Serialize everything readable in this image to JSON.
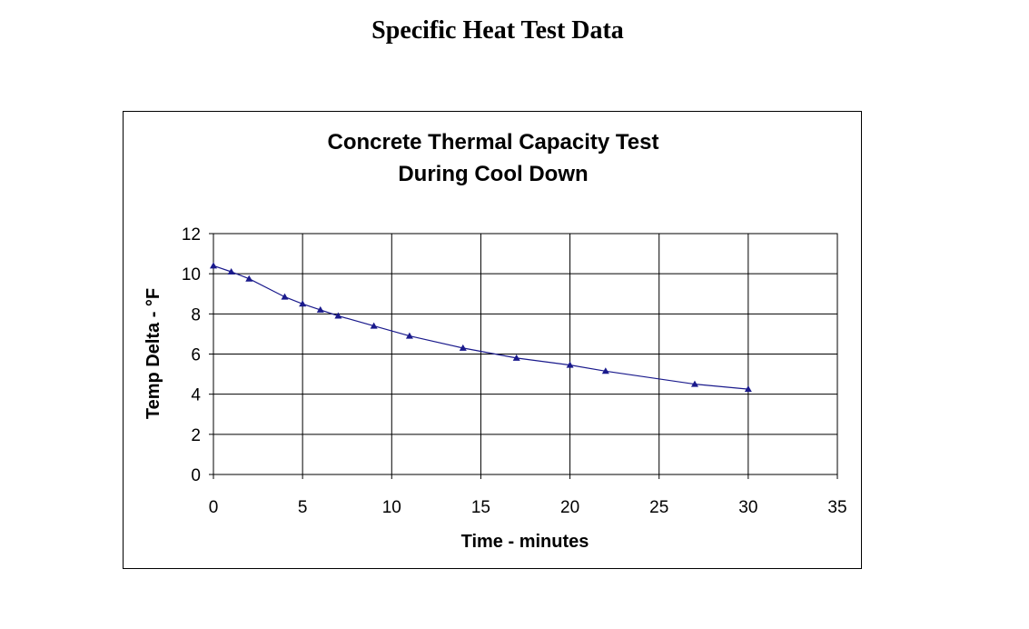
{
  "page": {
    "heading": "Specific Heat Test Data"
  },
  "chart_data": {
    "type": "line",
    "title_lines": [
      "Concrete Thermal Capacity Test",
      "During Cool Down"
    ],
    "xlabel": "Time - minutes",
    "ylabel": "Temp Delta - °F",
    "xlim": [
      0,
      35
    ],
    "ylim": [
      0,
      12
    ],
    "xticks": [
      0,
      5,
      10,
      15,
      20,
      25,
      30,
      35
    ],
    "yticks": [
      0,
      2,
      4,
      6,
      8,
      10,
      12
    ],
    "grid": true,
    "legend": "none",
    "series": [
      {
        "color": "#1a1a8c",
        "marker": "triangle",
        "x": [
          0,
          1,
          2,
          4,
          5,
          6,
          7,
          9,
          11,
          14,
          17,
          20,
          22,
          27,
          30
        ],
        "y": [
          10.4,
          10.1,
          9.75,
          8.85,
          8.5,
          8.2,
          7.9,
          7.4,
          6.9,
          6.3,
          5.8,
          5.45,
          5.15,
          4.5,
          4.25
        ]
      }
    ]
  }
}
